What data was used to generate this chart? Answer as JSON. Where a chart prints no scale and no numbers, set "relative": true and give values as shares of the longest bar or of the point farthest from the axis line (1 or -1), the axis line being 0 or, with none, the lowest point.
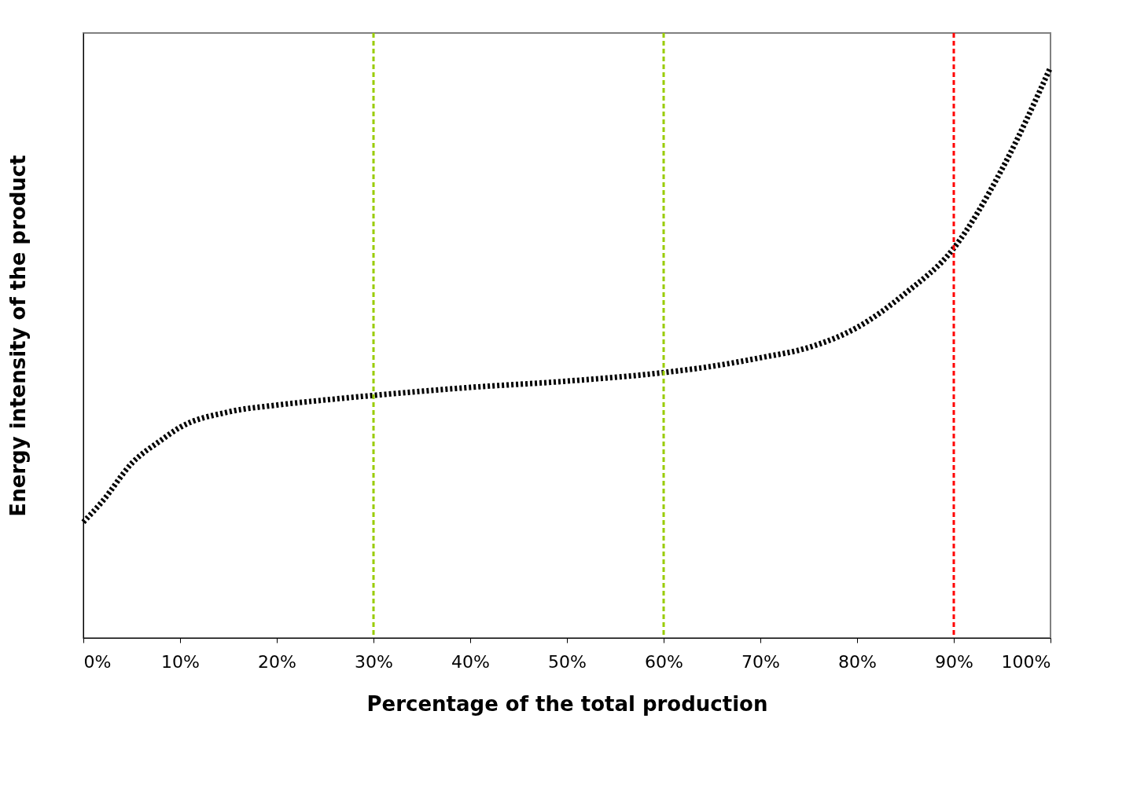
{
  "chart_data": {
    "type": "line",
    "xlabel": "Percentage of the total production",
    "ylabel": "Energy intensity of the product",
    "relative": true,
    "xlim": [
      0,
      100
    ],
    "xticks": [
      {
        "value": 0,
        "label": "0%"
      },
      {
        "value": 10,
        "label": "10%"
      },
      {
        "value": 20,
        "label": "20%"
      },
      {
        "value": 30,
        "label": "30%"
      },
      {
        "value": 40,
        "label": "40%"
      },
      {
        "value": 50,
        "label": "50%"
      },
      {
        "value": 60,
        "label": "60%"
      },
      {
        "value": 70,
        "label": "70%"
      },
      {
        "value": 80,
        "label": "80%"
      },
      {
        "value": 90,
        "label": "90%"
      },
      {
        "value": 100,
        "label": "100%"
      }
    ],
    "x": [
      0,
      2,
      5,
      8,
      10,
      15,
      20,
      25,
      30,
      40,
      50,
      60,
      65,
      70,
      75,
      80,
      85,
      90,
      95,
      100
    ],
    "series": [
      {
        "color": "#000000",
        "values": [
          0.203,
          0.24,
          0.306,
          0.346,
          0.369,
          0.396,
          0.408,
          0.417,
          0.425,
          0.439,
          0.45,
          0.465,
          0.476,
          0.491,
          0.509,
          0.544,
          0.604,
          0.683,
          0.822,
          1.0
        ]
      }
    ],
    "line_style": "dotted",
    "marker": "none",
    "grid": false,
    "tick_labels": "x",
    "ref_lines": [
      {
        "axis": "x",
        "value": 30,
        "color": "#99cc00",
        "line_style": "dashed"
      },
      {
        "axis": "x",
        "value": 60,
        "color": "#99cc00",
        "line_style": "dashed"
      },
      {
        "axis": "x",
        "value": 90,
        "color": "#ff0000",
        "line_style": "dashed"
      }
    ]
  }
}
